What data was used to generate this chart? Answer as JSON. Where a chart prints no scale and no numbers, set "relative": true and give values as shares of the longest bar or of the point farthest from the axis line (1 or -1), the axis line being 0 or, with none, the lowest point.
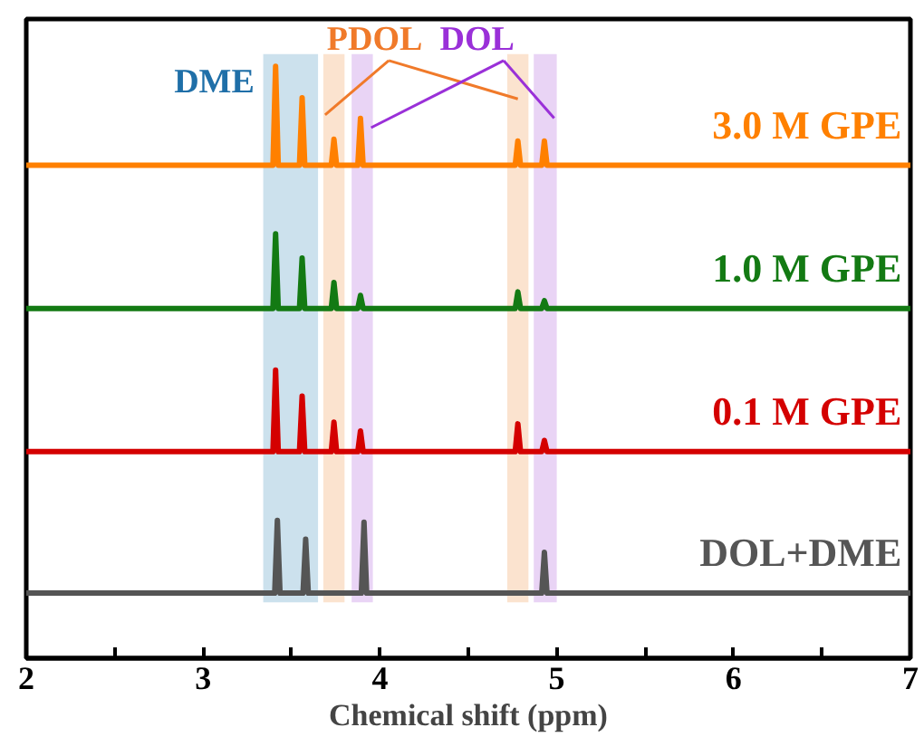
{
  "chart_data": {
    "type": "line",
    "relative": true,
    "xlabel": "Chemical shift (ppm)",
    "xlim": [
      2,
      7
    ],
    "xticks": [
      2,
      {
        "value": 2.5,
        "label": null
      },
      3,
      {
        "value": 3.5,
        "label": null
      },
      4,
      {
        "value": 4.5,
        "label": null
      },
      5,
      {
        "value": 5.5,
        "label": null
      },
      6,
      {
        "value": 6.5,
        "label": null
      },
      7
    ],
    "series": [
      {
        "name": "3.0 M GPE",
        "color": "#ff8000",
        "x": [
          2,
          3.395,
          3.41,
          3.425,
          3.545,
          3.56,
          3.575,
          3.725,
          3.74,
          3.755,
          3.875,
          3.89,
          3.905,
          4.765,
          4.78,
          4.795,
          4.915,
          4.93,
          4.945,
          7
        ],
        "values": [
          0.833,
          0.833,
          1.0,
          0.833,
          0.833,
          0.947,
          0.833,
          0.833,
          0.877,
          0.833,
          0.833,
          0.912,
          0.833,
          0.833,
          0.874,
          0.833,
          0.833,
          0.874,
          0.833,
          0.833
        ]
      },
      {
        "name": "1.0 M GPE",
        "color": "#137a13",
        "x": [
          2,
          3.395,
          3.41,
          3.425,
          3.545,
          3.56,
          3.575,
          3.725,
          3.74,
          3.755,
          3.875,
          3.89,
          3.905,
          4.765,
          4.78,
          4.795,
          4.915,
          4.93,
          4.945,
          7
        ],
        "values": [
          0.591,
          0.591,
          0.717,
          0.591,
          0.591,
          0.676,
          0.591,
          0.591,
          0.635,
          0.591,
          0.591,
          0.613,
          0.591,
          0.591,
          0.619,
          0.591,
          0.591,
          0.604,
          0.591,
          0.591
        ]
      },
      {
        "name": "0.1 M GPE",
        "color": "#d40000",
        "x": [
          2,
          3.395,
          3.41,
          3.425,
          3.545,
          3.56,
          3.575,
          3.725,
          3.74,
          3.755,
          3.875,
          3.89,
          3.905,
          4.765,
          4.78,
          4.795,
          4.915,
          4.93,
          4.945,
          7
        ],
        "values": [
          0.349,
          0.349,
          0.487,
          0.349,
          0.349,
          0.443,
          0.349,
          0.349,
          0.399,
          0.349,
          0.349,
          0.384,
          0.349,
          0.349,
          0.396,
          0.349,
          0.349,
          0.368,
          0.349,
          0.349
        ]
      },
      {
        "name": "DOL+DME",
        "color": "#555555",
        "x": [
          2,
          3.405,
          3.42,
          3.435,
          3.565,
          3.58,
          3.595,
          3.895,
          3.91,
          3.925,
          4.915,
          4.93,
          4.945,
          7
        ],
        "values": [
          0.11,
          0.11,
          0.233,
          0.11,
          0.11,
          0.201,
          0.11,
          0.11,
          0.23,
          0.11,
          0.11,
          0.179,
          0.11,
          0.11
        ]
      }
    ],
    "bands": [
      {
        "axis": "x",
        "from": 3.34,
        "to": 3.65,
        "label": "DME",
        "color": "#c9dfec"
      },
      {
        "axis": "x",
        "from": 3.68,
        "to": 3.8,
        "label": "PDOL",
        "color": "#fbe2cc"
      },
      {
        "axis": "x",
        "from": 3.84,
        "to": 3.96,
        "label": "DOL",
        "color": "#e8d2f4"
      },
      {
        "axis": "x",
        "from": 4.72,
        "to": 4.84,
        "label": null,
        "color": "#fbe2cc"
      },
      {
        "axis": "x",
        "from": 4.87,
        "to": 5.0,
        "label": null,
        "color": "#e8d2f4"
      }
    ],
    "grid": false
  }
}
